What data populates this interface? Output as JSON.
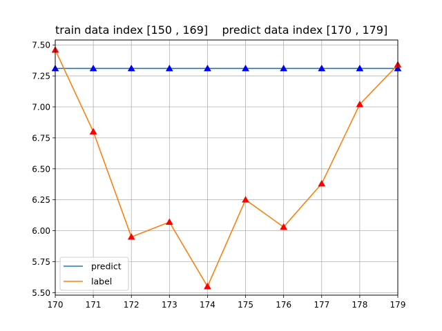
{
  "chart_data": {
    "type": "line",
    "title": "train data index [150 , 169]    predict data index [170 , 179]",
    "xlabel": "",
    "ylabel": "",
    "x": [
      170,
      171,
      172,
      173,
      174,
      175,
      176,
      177,
      178,
      179
    ],
    "xlim": [
      170,
      179
    ],
    "ylim": [
      5.48,
      7.54
    ],
    "x_ticks": [
      "170",
      "171",
      "172",
      "173",
      "174",
      "175",
      "176",
      "177",
      "178",
      "179"
    ],
    "y_ticks": [
      5.5,
      5.75,
      6.0,
      6.25,
      6.5,
      6.75,
      7.0,
      7.25,
      7.5
    ],
    "y_tick_labels": [
      "5.50",
      "5.75",
      "6.00",
      "6.25",
      "6.50",
      "6.75",
      "7.00",
      "7.25",
      "7.50"
    ],
    "grid": true,
    "legend_position": "lower-left",
    "series": [
      {
        "name": "predict",
        "color": "#1f77b4",
        "marker_color": "#0000ff",
        "marker": "triangle-up",
        "values": [
          7.31,
          7.31,
          7.31,
          7.31,
          7.31,
          7.31,
          7.31,
          7.31,
          7.31,
          7.31
        ]
      },
      {
        "name": "label",
        "color": "#ff7f0e",
        "marker_color": "#ff0000",
        "marker": "triangle-up",
        "values": [
          7.46,
          6.8,
          5.95,
          6.07,
          5.55,
          6.25,
          6.03,
          6.38,
          7.02,
          7.34
        ]
      }
    ]
  }
}
